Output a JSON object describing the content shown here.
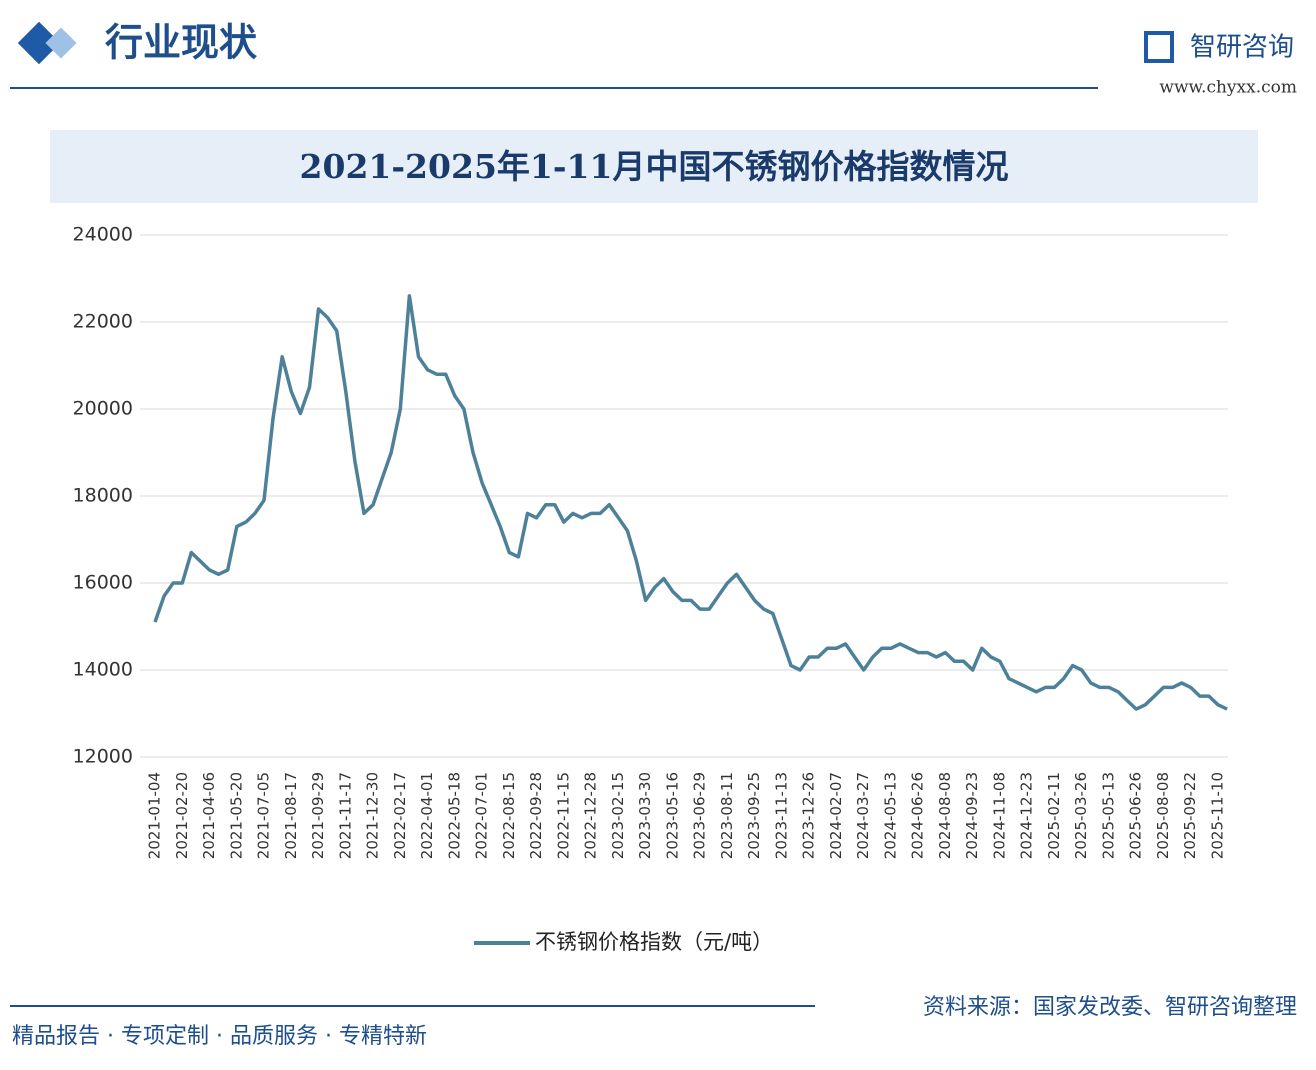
{
  "header": {
    "section": "行业现状",
    "brand": "智研咨询",
    "site": "www.chyxx.com"
  },
  "chart_data": {
    "type": "line",
    "title": "2021-2025年1-11月中国不锈钢价格指数情况",
    "categories": [
      "2021-01-04",
      null,
      null,
      "2021-02-20",
      null,
      null,
      "2021-04-06",
      null,
      null,
      "2021-05-20",
      null,
      null,
      "2021-07-05",
      null,
      null,
      "2021-08-17",
      null,
      null,
      "2021-09-29",
      null,
      null,
      "2021-11-17",
      null,
      null,
      "2021-12-30",
      null,
      null,
      "2022-02-17",
      null,
      null,
      "2022-04-01",
      null,
      null,
      "2022-05-18",
      null,
      null,
      "2022-07-01",
      null,
      null,
      "2022-08-15",
      null,
      null,
      "2022-09-28",
      null,
      null,
      "2022-11-15",
      null,
      null,
      "2022-12-28",
      null,
      null,
      "2023-02-15",
      null,
      null,
      "2023-03-30",
      null,
      null,
      "2023-05-16",
      null,
      null,
      "2023-06-29",
      null,
      null,
      "2023-08-11",
      null,
      null,
      "2023-09-25",
      null,
      null,
      "2023-11-13",
      null,
      null,
      "2023-12-26",
      null,
      null,
      "2024-02-07",
      null,
      null,
      "2024-03-27",
      null,
      null,
      "2024-05-13",
      null,
      null,
      "2024-06-26",
      null,
      null,
      "2024-08-08",
      null,
      null,
      "2024-09-23",
      null,
      null,
      "2024-11-08",
      null,
      null,
      "2024-12-23",
      null,
      null,
      "2025-02-11",
      null,
      null,
      "2025-03-26",
      null,
      null,
      "2025-05-13",
      null,
      null,
      "2025-06-26",
      null,
      null,
      "2025-08-08",
      null,
      null,
      "2025-09-22",
      null,
      null,
      "2025-11-10",
      null
    ],
    "series": [
      {
        "name": "不锈钢价格指数（元/吨）",
        "color": "#4d8199",
        "values": [
          15100,
          15700,
          16000,
          16000,
          16700,
          16500,
          16300,
          16200,
          16300,
          17300,
          17400,
          17600,
          17900,
          19800,
          21200,
          20400,
          19900,
          20500,
          22300,
          22100,
          21800,
          20400,
          18800,
          17600,
          17800,
          18400,
          19000,
          20000,
          22600,
          21200,
          20900,
          20800,
          20800,
          20300,
          20000,
          19000,
          18300,
          17800,
          17300,
          16700,
          16600,
          17600,
          17500,
          17800,
          17800,
          17400,
          17600,
          17500,
          17600,
          17600,
          17800,
          17500,
          17200,
          16500,
          15600,
          15900,
          16100,
          15800,
          15600,
          15600,
          15400,
          15400,
          15700,
          16000,
          16200,
          15900,
          15600,
          15400,
          15300,
          14700,
          14100,
          14000,
          14300,
          14300,
          14500,
          14500,
          14600,
          14300,
          14000,
          14300,
          14500,
          14500,
          14600,
          14500,
          14400,
          14400,
          14300,
          14400,
          14200,
          14200,
          14000,
          14500,
          14300,
          14200,
          13800,
          13700,
          13600,
          13500,
          13600,
          13600,
          13800,
          14100,
          14000,
          13700,
          13600,
          13600,
          13500,
          13300,
          13100,
          13200,
          13400,
          13600,
          13600,
          13700,
          13600,
          13400,
          13400,
          13200,
          13100
        ]
      }
    ],
    "ylim": [
      12000,
      24000
    ],
    "yticks": [
      12000,
      14000,
      16000,
      18000,
      20000,
      22000,
      24000
    ],
    "grid": true,
    "source": "资料来源：国家发改委、智研咨询整理"
  },
  "footer": "精品报告 · 专项定制 · 品质服务 · 专精特新"
}
